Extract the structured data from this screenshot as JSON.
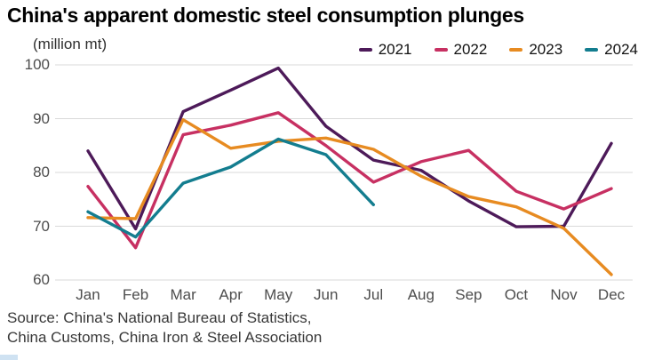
{
  "title": "China's apparent domestic steel consumption plunges",
  "unit_label": "(million mt)",
  "source": {
    "line1": "Source: China's National Bureau of Statistics,",
    "line2": "China Customs, China Iron & Steel Association"
  },
  "colors": {
    "grid": "#d9d9d9",
    "axis_text": "#4d4d4d",
    "accent_bar": "#cfe2f2"
  },
  "chart_data": {
    "type": "line",
    "categories": [
      "Jan",
      "Feb",
      "Mar",
      "Apr",
      "May",
      "Jun",
      "Jul",
      "Aug",
      "Sep",
      "Oct",
      "Nov",
      "Dec"
    ],
    "title": "China's apparent domestic steel consumption plunges",
    "ylabel": "(million mt)",
    "ylim": [
      60,
      100
    ],
    "yticks": [
      100,
      90,
      80,
      70,
      60
    ],
    "grid": "horizontal",
    "legend_position": "top-right",
    "series": [
      {
        "name": "2021",
        "color": "#4d1a59",
        "values": [
          84,
          69.5,
          91.3,
          95.3,
          99.4,
          88.6,
          82.3,
          80.4,
          74.7,
          69.9,
          70,
          85.4
        ]
      },
      {
        "name": "2022",
        "color": "#c73062",
        "values": [
          77.4,
          66,
          87,
          88.8,
          91.1,
          85,
          78.2,
          82,
          84.1,
          76.5,
          73.2,
          77
        ]
      },
      {
        "name": "2023",
        "color": "#e78b21",
        "values": [
          71.6,
          71.4,
          89.8,
          84.5,
          85.8,
          86.4,
          84.3,
          79.3,
          75.5,
          73.6,
          69.6,
          61
        ]
      },
      {
        "name": "2024",
        "color": "#137d8f",
        "values": [
          72.7,
          68,
          78,
          81,
          86.2,
          83.3,
          74,
          null,
          null,
          null,
          null,
          null
        ]
      }
    ]
  }
}
